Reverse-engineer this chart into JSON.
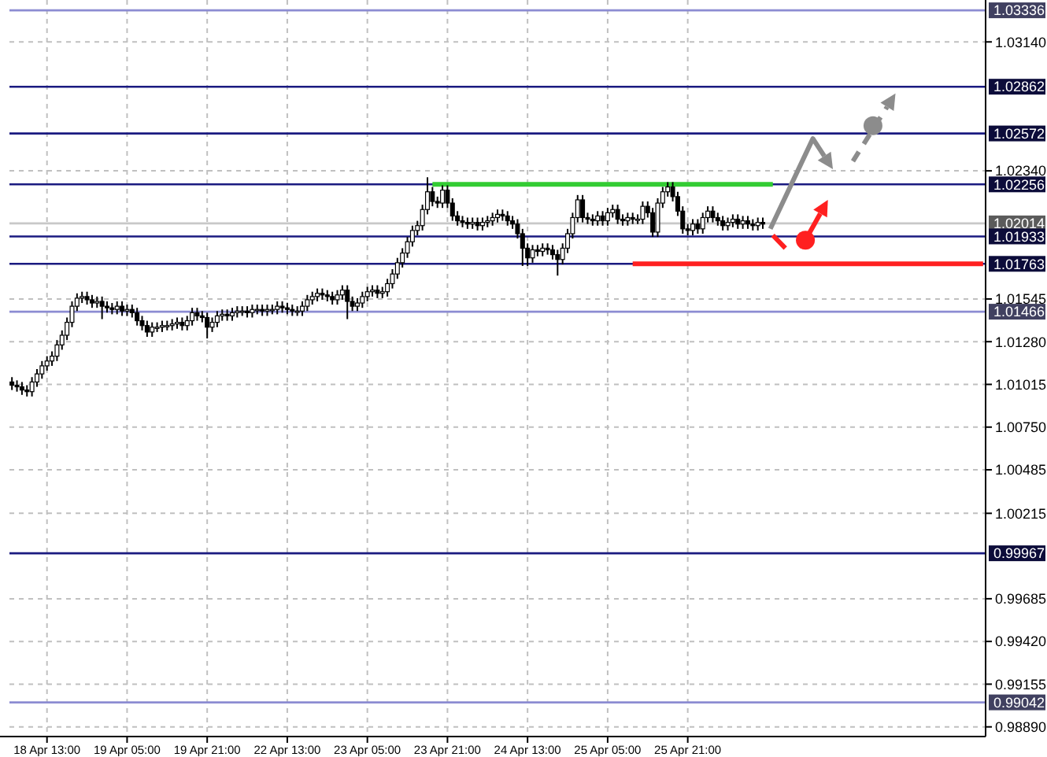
{
  "chart_data": {
    "type": "candlestick",
    "categories": [
      null,
      null,
      null,
      null,
      null,
      null,
      null,
      "18 Apr 13:00",
      null,
      null,
      null,
      null,
      null,
      null,
      null,
      null,
      null,
      null,
      null,
      null,
      null,
      null,
      null,
      "19 Apr 05:00",
      null,
      null,
      null,
      null,
      null,
      null,
      null,
      null,
      null,
      null,
      null,
      null,
      null,
      null,
      null,
      "19 Apr 21:00",
      null,
      null,
      null,
      null,
      null,
      null,
      null,
      null,
      null,
      null,
      null,
      null,
      null,
      null,
      null,
      "22 Apr 13:00",
      null,
      null,
      null,
      null,
      null,
      null,
      null,
      null,
      null,
      null,
      null,
      null,
      null,
      null,
      null,
      "23 Apr 05:00",
      null,
      null,
      null,
      null,
      null,
      null,
      null,
      null,
      null,
      null,
      null,
      null,
      null,
      null,
      null,
      "23 Apr 21:00",
      null,
      null,
      null,
      null,
      null,
      null,
      null,
      null,
      null,
      null,
      null,
      null,
      null,
      null,
      null,
      "24 Apr 13:00",
      null,
      null,
      null,
      null,
      null,
      null,
      null,
      null,
      null,
      null,
      null,
      null,
      null,
      null,
      null,
      "25 Apr 05:00",
      null,
      null,
      null,
      null,
      null,
      null,
      null,
      null,
      null,
      null,
      null,
      null,
      null,
      null,
      null,
      "25 Apr 21:00",
      null,
      null,
      null,
      null,
      null,
      null,
      null,
      null,
      null,
      null,
      null,
      null,
      null,
      null,
      null,
      null,
      null,
      null,
      null,
      null,
      null,
      null,
      null,
      null,
      null,
      null,
      null,
      null,
      null,
      null,
      null,
      null,
      null,
      null,
      null,
      null,
      null,
      null,
      null,
      null,
      null,
      null,
      null,
      null,
      null,
      null,
      null,
      null,
      null,
      null,
      null,
      null,
      null,
      null,
      null,
      null,
      null,
      null,
      null
    ],
    "ohlc": [
      [
        1.0103,
        1.0106,
        1.0098,
        1.0101
      ],
      [
        1.0101,
        1.0104,
        1.0097,
        1.01
      ],
      [
        1.01,
        1.0103,
        1.0095,
        1.0098
      ],
      [
        1.0098,
        1.0101,
        1.0094,
        1.0097
      ],
      [
        1.0097,
        1.0106,
        1.0094,
        1.0103
      ],
      [
        1.0103,
        1.0111,
        1.01,
        1.0108
      ],
      [
        1.0108,
        1.0116,
        1.0105,
        1.0113
      ],
      [
        1.0113,
        1.0119,
        1.011,
        1.0116
      ],
      [
        1.0116,
        1.0122,
        1.0113,
        1.0119
      ],
      [
        1.0119,
        1.0129,
        1.0116,
        1.0126
      ],
      [
        1.0126,
        1.0135,
        1.0123,
        1.0132
      ],
      [
        1.0132,
        1.0143,
        1.0129,
        1.014
      ],
      [
        1.014,
        1.0153,
        1.0137,
        1.015
      ],
      [
        1.015,
        1.0158,
        1.0147,
        1.0155
      ],
      [
        1.0155,
        1.0159,
        1.0152,
        1.0156
      ],
      [
        1.0156,
        1.0159,
        1.0151,
        1.0154
      ],
      [
        1.0154,
        1.0157,
        1.0149,
        1.0152
      ],
      [
        1.0152,
        1.0156,
        1.0149,
        1.0153
      ],
      [
        1.0153,
        1.0156,
        1.0142,
        1.015
      ],
      [
        1.015,
        1.0153,
        1.0146,
        1.0149
      ],
      [
        1.0149,
        1.0152,
        1.0145,
        1.0148
      ],
      [
        1.0148,
        1.0153,
        1.0145,
        1.015
      ],
      [
        1.015,
        1.0153,
        1.0144,
        1.0147
      ],
      [
        1.0147,
        1.0151,
        1.0144,
        1.0148
      ],
      [
        1.0148,
        1.0151,
        1.0143,
        1.0146
      ],
      [
        1.0146,
        1.0149,
        1.0138,
        1.0141
      ],
      [
        1.0141,
        1.0144,
        1.0135,
        1.0138
      ],
      [
        1.0138,
        1.0141,
        1.0131,
        1.0134
      ],
      [
        1.0134,
        1.014,
        1.0131,
        1.0137
      ],
      [
        1.0137,
        1.014,
        1.0134,
        1.0137
      ],
      [
        1.0137,
        1.0141,
        1.0134,
        1.0138
      ],
      [
        1.0138,
        1.0141,
        1.0135,
        1.0138
      ],
      [
        1.0138,
        1.0142,
        1.0135,
        1.0139
      ],
      [
        1.0139,
        1.0143,
        1.0136,
        1.014
      ],
      [
        1.014,
        1.0143,
        1.0135,
        1.0138
      ],
      [
        1.0138,
        1.0144,
        1.0135,
        1.0141
      ],
      [
        1.0141,
        1.0149,
        1.0138,
        1.0146
      ],
      [
        1.0146,
        1.0149,
        1.0141,
        1.0144
      ],
      [
        1.0144,
        1.0147,
        1.014,
        1.0143
      ],
      [
        1.0143,
        1.0146,
        1.013,
        1.0137
      ],
      [
        1.0137,
        1.0143,
        1.0134,
        1.014
      ],
      [
        1.014,
        1.0147,
        1.0137,
        1.0144
      ],
      [
        1.0144,
        1.0148,
        1.0141,
        1.0145
      ],
      [
        1.0145,
        1.0148,
        1.0141,
        1.0144
      ],
      [
        1.0144,
        1.0149,
        1.0141,
        1.0146
      ],
      [
        1.0146,
        1.015,
        1.0143,
        1.0147
      ],
      [
        1.0147,
        1.015,
        1.0144,
        1.0147
      ],
      [
        1.0147,
        1.015,
        1.0143,
        1.0146
      ],
      [
        1.0146,
        1.0151,
        1.0143,
        1.0148
      ],
      [
        1.0148,
        1.0151,
        1.0145,
        1.0148
      ],
      [
        1.0148,
        1.0151,
        1.0144,
        1.0147
      ],
      [
        1.0147,
        1.0151,
        1.0144,
        1.0148
      ],
      [
        1.0148,
        1.0151,
        1.0145,
        1.0148
      ],
      [
        1.0148,
        1.0153,
        1.0145,
        1.015
      ],
      [
        1.015,
        1.0153,
        1.0146,
        1.0149
      ],
      [
        1.0149,
        1.0152,
        1.0145,
        1.0148
      ],
      [
        1.0148,
        1.0151,
        1.0144,
        1.0147
      ],
      [
        1.0147,
        1.015,
        1.0144,
        1.0147
      ],
      [
        1.0147,
        1.0153,
        1.0144,
        1.015
      ],
      [
        1.015,
        1.0157,
        1.0147,
        1.0154
      ],
      [
        1.0154,
        1.0159,
        1.0151,
        1.0156
      ],
      [
        1.0156,
        1.0161,
        1.0153,
        1.0158
      ],
      [
        1.0158,
        1.0161,
        1.0154,
        1.0157
      ],
      [
        1.0157,
        1.016,
        1.0153,
        1.0156
      ],
      [
        1.0156,
        1.0159,
        1.0151,
        1.0154
      ],
      [
        1.0154,
        1.016,
        1.0151,
        1.0157
      ],
      [
        1.0157,
        1.0163,
        1.0154,
        1.016
      ],
      [
        1.016,
        1.0163,
        1.0142,
        1.0153
      ],
      [
        1.0153,
        1.0156,
        1.0147,
        1.015
      ],
      [
        1.015,
        1.0155,
        1.0147,
        1.0152
      ],
      [
        1.0152,
        1.0159,
        1.0149,
        1.0156
      ],
      [
        1.0156,
        1.0162,
        1.0153,
        1.0159
      ],
      [
        1.0159,
        1.0163,
        1.0156,
        1.016
      ],
      [
        1.016,
        1.0163,
        1.0155,
        1.0158
      ],
      [
        1.0158,
        1.0162,
        1.0155,
        1.0159
      ],
      [
        1.0159,
        1.0167,
        1.0156,
        1.0164
      ],
      [
        1.0164,
        1.0173,
        1.0161,
        1.017
      ],
      [
        1.017,
        1.018,
        1.0167,
        1.0177
      ],
      [
        1.0177,
        1.0186,
        1.0174,
        1.0183
      ],
      [
        1.0183,
        1.0193,
        1.018,
        1.019
      ],
      [
        1.019,
        1.02,
        1.0187,
        1.0197
      ],
      [
        1.0197,
        1.0203,
        1.0194,
        1.02
      ],
      [
        1.02,
        1.0213,
        1.0197,
        1.021
      ],
      [
        1.021,
        1.023,
        1.0207,
        1.0221
      ],
      [
        1.0221,
        1.0224,
        1.0212,
        1.0215
      ],
      [
        1.0215,
        1.0218,
        1.0211,
        1.0214
      ],
      [
        1.0214,
        1.0225,
        1.0211,
        1.0222
      ],
      [
        1.0222,
        1.0225,
        1.0211,
        1.0214
      ],
      [
        1.0214,
        1.0217,
        1.0203,
        1.0206
      ],
      [
        1.0206,
        1.0209,
        1.02,
        1.0203
      ],
      [
        1.0203,
        1.0206,
        1.0199,
        1.0202
      ],
      [
        1.0202,
        1.0205,
        1.0198,
        1.0201
      ],
      [
        1.0201,
        1.0205,
        1.0198,
        1.0202
      ],
      [
        1.0202,
        1.0205,
        1.0197,
        1.02
      ],
      [
        1.02,
        1.0205,
        1.0197,
        1.0202
      ],
      [
        1.0202,
        1.0206,
        1.0199,
        1.0203
      ],
      [
        1.0203,
        1.0208,
        1.02,
        1.0205
      ],
      [
        1.0205,
        1.021,
        1.0202,
        1.0207
      ],
      [
        1.0207,
        1.021,
        1.0203,
        1.0206
      ],
      [
        1.0206,
        1.0209,
        1.02,
        1.0203
      ],
      [
        1.0203,
        1.0206,
        1.0198,
        1.0201
      ],
      [
        1.0201,
        1.0204,
        1.0192,
        1.0195
      ],
      [
        1.0195,
        1.0198,
        1.0175,
        1.0186
      ],
      [
        1.0186,
        1.0189,
        1.0175,
        1.018
      ],
      [
        1.018,
        1.0188,
        1.0177,
        1.0185
      ],
      [
        1.0185,
        1.0188,
        1.0181,
        1.0184
      ],
      [
        1.0184,
        1.0189,
        1.0181,
        1.0186
      ],
      [
        1.0186,
        1.0189,
        1.0182,
        1.0185
      ],
      [
        1.0185,
        1.0188,
        1.0179,
        1.0182
      ],
      [
        1.0182,
        1.0185,
        1.0169,
        1.0179
      ],
      [
        1.0179,
        1.0189,
        1.0176,
        1.0186
      ],
      [
        1.0186,
        1.0198,
        1.0183,
        1.0195
      ],
      [
        1.0195,
        1.0208,
        1.0192,
        1.0205
      ],
      [
        1.0205,
        1.0219,
        1.0202,
        1.0216
      ],
      [
        1.0216,
        1.0219,
        1.0202,
        1.0205
      ],
      [
        1.0205,
        1.0208,
        1.0201,
        1.0204
      ],
      [
        1.0204,
        1.0207,
        1.02,
        1.0203
      ],
      [
        1.0203,
        1.0209,
        1.02,
        1.0206
      ],
      [
        1.0206,
        1.0209,
        1.02,
        1.0203
      ],
      [
        1.0203,
        1.0211,
        1.02,
        1.0208
      ],
      [
        1.0208,
        1.0213,
        1.0205,
        1.021
      ],
      [
        1.021,
        1.0213,
        1.0201,
        1.0204
      ],
      [
        1.0204,
        1.0207,
        1.02,
        1.0203
      ],
      [
        1.0203,
        1.0208,
        1.02,
        1.0205
      ],
      [
        1.0205,
        1.0208,
        1.0201,
        1.0204
      ],
      [
        1.0204,
        1.0207,
        1.0201,
        1.0204
      ],
      [
        1.0204,
        1.0215,
        1.0201,
        1.0212
      ],
      [
        1.0212,
        1.0215,
        1.0205,
        1.0208
      ],
      [
        1.0208,
        1.0211,
        1.0193,
        1.0196
      ],
      [
        1.0196,
        1.0217,
        1.0193,
        1.0214
      ],
      [
        1.0214,
        1.0224,
        1.0211,
        1.0221
      ],
      [
        1.0221,
        1.0227,
        1.0218,
        1.0224
      ],
      [
        1.0224,
        1.0227,
        1.0215,
        1.0218
      ],
      [
        1.0218,
        1.0221,
        1.0206,
        1.0209
      ],
      [
        1.0209,
        1.0212,
        1.0195,
        1.0198
      ],
      [
        1.0198,
        1.0201,
        1.0194,
        1.0197
      ],
      [
        1.0197,
        1.0204,
        1.0194,
        1.0201
      ],
      [
        1.0201,
        1.0204,
        1.0195,
        1.0198
      ],
      [
        1.0198,
        1.0208,
        1.0195,
        1.0205
      ],
      [
        1.0205,
        1.0212,
        1.0202,
        1.0209
      ],
      [
        1.0209,
        1.0212,
        1.0202,
        1.0205
      ],
      [
        1.0205,
        1.0208,
        1.02,
        1.0203
      ],
      [
        1.0203,
        1.0206,
        1.0197,
        1.02
      ],
      [
        1.02,
        1.0205,
        1.0197,
        1.0202
      ],
      [
        1.0202,
        1.0207,
        1.0199,
        1.0204
      ],
      [
        1.0204,
        1.0207,
        1.0198,
        1.0201
      ],
      [
        1.0201,
        1.0206,
        1.0198,
        1.0203
      ],
      [
        1.0203,
        1.0206,
        1.0198,
        1.0201
      ],
      [
        1.0201,
        1.0204,
        1.0197,
        1.02
      ],
      [
        1.02,
        1.0205,
        1.0197,
        1.0202
      ],
      [
        1.0202,
        1.0205,
        1.0198,
        1.0201
      ],
      null,
      null,
      null,
      null,
      null,
      null,
      null,
      null,
      null,
      null,
      null,
      null,
      null,
      null,
      null,
      null,
      null,
      null,
      null,
      null,
      null,
      null,
      null,
      null,
      null,
      null,
      null,
      null,
      null,
      null,
      null,
      null,
      null,
      null,
      null,
      null,
      null,
      null,
      null,
      null,
      null,
      null,
      null,
      null
    ],
    "series": [
      {
        "type": "line",
        "color": "#33cc33",
        "values": [
          null,
          null,
          null,
          null,
          null,
          null,
          null,
          null,
          null,
          null,
          null,
          null,
          null,
          null,
          null,
          null,
          null,
          null,
          null,
          null,
          null,
          null,
          null,
          null,
          null,
          null,
          null,
          null,
          null,
          null,
          null,
          null,
          null,
          null,
          null,
          null,
          null,
          null,
          null,
          null,
          null,
          null,
          null,
          null,
          null,
          null,
          null,
          null,
          null,
          null,
          null,
          null,
          null,
          null,
          null,
          null,
          null,
          null,
          null,
          null,
          null,
          null,
          null,
          null,
          null,
          null,
          null,
          null,
          null,
          null,
          null,
          null,
          null,
          null,
          null,
          null,
          null,
          null,
          null,
          null,
          null,
          null,
          null,
          null,
          1.02256,
          1.02256,
          1.02256,
          1.02256,
          1.02256,
          1.02256,
          1.02256,
          1.02256,
          1.02256,
          1.02256,
          1.02256,
          1.02256,
          1.02256,
          1.02256,
          1.02256,
          1.02256,
          1.02256,
          1.02256,
          1.02256,
          1.02256,
          1.02256,
          1.02256,
          1.02256,
          1.02256,
          1.02256,
          1.02256,
          1.02256,
          1.02256,
          1.02256,
          1.02256,
          1.02256,
          1.02256,
          1.02256,
          1.02256,
          1.02256,
          1.02256,
          1.02256,
          1.02256,
          1.02256,
          1.02256,
          1.02256,
          1.02256,
          1.02256,
          1.02256,
          1.02256,
          1.02256,
          1.02256,
          1.02256,
          1.02256,
          1.02256,
          1.02256,
          1.02256,
          1.02256,
          1.02256,
          1.02256,
          1.02256,
          1.02256,
          1.02256,
          1.02256,
          1.02256,
          1.02256,
          1.02256,
          1.02256,
          1.02256,
          1.02256,
          1.02256,
          1.02256,
          1.02256,
          1.02256,
          null,
          null,
          null,
          null,
          null,
          null,
          null,
          null,
          null,
          null,
          null,
          null,
          null,
          null,
          null,
          null,
          null,
          null,
          null,
          null,
          null,
          null,
          null,
          null,
          null,
          null,
          null,
          null,
          null,
          null,
          null,
          null,
          null,
          null,
          null,
          null,
          null,
          null,
          null,
          null,
          null,
          null
        ]
      },
      {
        "type": "line",
        "color": "#ff2020",
        "values": [
          null,
          null,
          null,
          null,
          null,
          null,
          null,
          null,
          null,
          null,
          null,
          null,
          null,
          null,
          null,
          null,
          null,
          null,
          null,
          null,
          null,
          null,
          null,
          null,
          null,
          null,
          null,
          null,
          null,
          null,
          null,
          null,
          null,
          null,
          null,
          null,
          null,
          null,
          null,
          null,
          null,
          null,
          null,
          null,
          null,
          null,
          null,
          null,
          null,
          null,
          null,
          null,
          null,
          null,
          null,
          null,
          null,
          null,
          null,
          null,
          null,
          null,
          null,
          null,
          null,
          null,
          null,
          null,
          null,
          null,
          null,
          null,
          null,
          null,
          null,
          null,
          null,
          null,
          null,
          null,
          null,
          null,
          null,
          null,
          null,
          null,
          null,
          null,
          null,
          null,
          null,
          null,
          null,
          null,
          null,
          null,
          null,
          null,
          null,
          null,
          null,
          null,
          null,
          null,
          null,
          null,
          null,
          null,
          null,
          null,
          null,
          null,
          null,
          null,
          null,
          null,
          null,
          null,
          null,
          null,
          null,
          null,
          null,
          null,
          1.01763,
          1.01763,
          1.01763,
          1.01763,
          1.01763,
          1.01763,
          1.01763,
          1.01763,
          1.01763,
          1.01763,
          1.01763,
          1.01763,
          1.01763,
          1.01763,
          1.01763,
          1.01763,
          1.01763,
          1.01763,
          1.01763,
          1.01763,
          1.01763,
          1.01763,
          1.01763,
          1.01763,
          1.01763,
          1.01763,
          1.01763,
          1.01763,
          1.01763,
          1.01763,
          1.01763,
          1.01763,
          1.01763,
          1.01763,
          1.01763,
          1.01763,
          1.01763,
          1.01763,
          1.01763,
          1.01763,
          1.01763,
          1.01763,
          1.01763,
          1.01763,
          1.01763,
          1.01763,
          1.01763,
          1.01763,
          1.01763,
          1.01763,
          1.01763,
          1.01763,
          1.01763,
          1.01763,
          1.01763,
          1.01763,
          1.01763,
          1.01763,
          1.01763,
          1.01763,
          1.01763,
          1.01763,
          1.01763,
          1.01763,
          1.01763,
          1.01763,
          1.01763,
          1.01763,
          1.01763,
          1.01763,
          1.01763
        ]
      }
    ],
    "ylim": [
      0.9883,
      1.034
    ],
    "yticks": [
      {
        "value": 1.0314,
        "label": "1.03140"
      },
      {
        "value": 1.0234,
        "label": "1.02340"
      },
      1.01545,
      {
        "value": 1.0128,
        "label": "1.01280"
      },
      1.01015,
      {
        "value": 1.0075,
        "label": "1.00750"
      },
      1.00485,
      1.00215,
      0.99685,
      {
        "value": 0.9942,
        "label": "0.99420"
      },
      0.99155,
      {
        "value": 0.9889,
        "label": "0.98890"
      }
    ],
    "ref_lines": [
      {
        "axis": "y",
        "value": 1.03336,
        "label": "1.03336",
        "color": "#8c8cd2"
      },
      {
        "axis": "y",
        "value": 1.02862,
        "label": "1.02862",
        "color": "#1a1a80"
      },
      {
        "axis": "y",
        "value": 1.02572,
        "label": "1.02572",
        "color": "#1a1a80"
      },
      {
        "axis": "y",
        "value": 1.02256,
        "label": "1.02256",
        "color": "#1a1a80"
      },
      {
        "axis": "y",
        "value": 1.02014,
        "label": "1.02014",
        "color": "#c8c8c8"
      },
      {
        "axis": "y",
        "value": 1.01933,
        "label": "1.01933",
        "color": "#1a1a80"
      },
      {
        "axis": "y",
        "value": 1.01763,
        "label": "1.01763",
        "color": "#1a1a80"
      },
      {
        "axis": "y",
        "value": 1.01466,
        "label": "1.01466",
        "color": "#8c8cd2"
      },
      {
        "axis": "y",
        "value": 0.99967,
        "label": "0.99967",
        "color": "#1a1a80"
      },
      {
        "axis": "y",
        "value": 0.99042,
        "label": "0.99042",
        "color": "#8c8cd2"
      }
    ],
    "grid": true
  }
}
